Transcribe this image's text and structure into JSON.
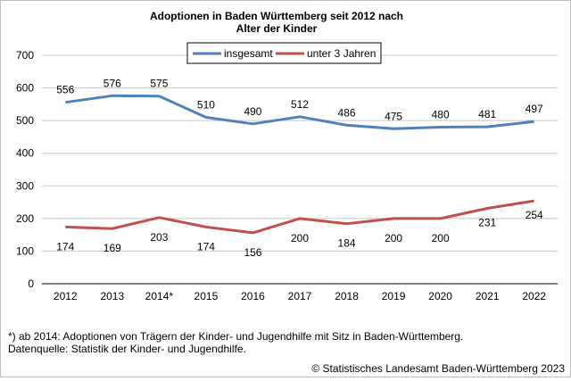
{
  "chart_data": {
    "type": "line",
    "title": [
      "Adoptionen in Baden Württemberg seit 2012 nach",
      "Alter der Kinder"
    ],
    "categories": [
      "2012",
      "2013",
      "2014*",
      "2015",
      "2016",
      "2017",
      "2018",
      "2019",
      "2020",
      "2021",
      "2022"
    ],
    "ylim": [
      0,
      700
    ],
    "yticks": [
      0,
      100,
      200,
      300,
      400,
      500,
      600,
      700
    ],
    "grid": true,
    "legend_position": "top-center",
    "series": [
      {
        "name": "insgesamt",
        "color": "#4f81bd",
        "label_side": "above",
        "values": [
          556,
          576,
          575,
          510,
          490,
          512,
          486,
          475,
          480,
          481,
          497
        ]
      },
      {
        "name": "unter 3 Jahren",
        "color": "#c0504d",
        "label_side": "below",
        "values": [
          174,
          169,
          203,
          174,
          156,
          200,
          184,
          200,
          200,
          231,
          254
        ]
      }
    ]
  },
  "footnote": "*) ab 2014: Adoptionen von Trägern der Kinder- und Jugendhilfe mit Sitz in Baden-Württemberg.",
  "source": "Datenquelle: Statistik der Kinder- und Jugendhilfe.",
  "copyright": "© Statistisches Landesamt Baden-Württemberg 2023"
}
